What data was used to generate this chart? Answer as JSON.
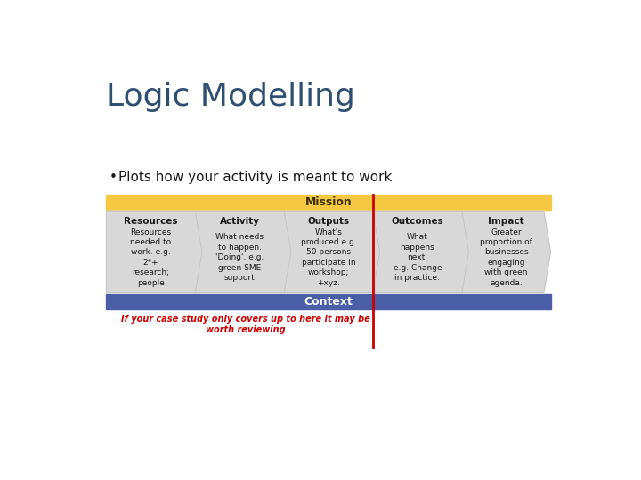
{
  "title": "Logic Modelling",
  "bullet": "Plots how your activity is meant to work",
  "title_color": "#2E4E72",
  "bullet_color": "#1a1a1a",
  "mission_text": "Mission",
  "mission_bg": "#F5C842",
  "context_text": "Context",
  "context_bg": "#4A5FA5",
  "context_text_color": "#FFFFFF",
  "mission_text_color": "#3A3000",
  "arrow_bg": "#D8D8D8",
  "arrow_border": "#C0C0C0",
  "red_line_color": "#CC0000",
  "annotation_color": "#CC0000",
  "annotation_text": "If your case study only covers up to here it may be\nworth reviewing",
  "columns": [
    {
      "header": "Resources",
      "body": "Resources\nneeded to\nwork. e.g.\n2*+\nresearch;\npeople"
    },
    {
      "header": "Activity",
      "body": "What needs\nto happen.\n'Doing'. e.g.\ngreen SME\nsupport"
    },
    {
      "header": "Outputs",
      "body": "What's\nproduced e.g.\n50 persons\nparticipate in\nworkshop;\n+xyz."
    },
    {
      "header": "Outcomes",
      "body": "What\nhappens\nnext.\ne.g. Change\nin practice."
    },
    {
      "header": "Impact",
      "body": "Greater\nproportion of\nbusinesses\nengaging\nwith green\nagenda."
    }
  ]
}
